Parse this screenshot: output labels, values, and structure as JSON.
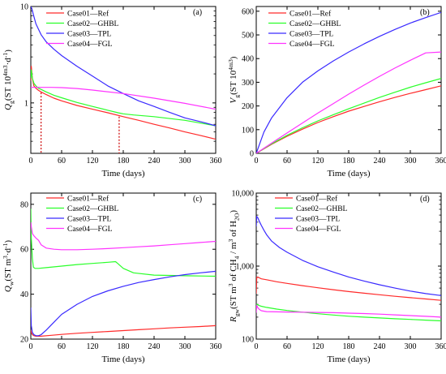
{
  "figure": {
    "background": "#ffffff"
  },
  "colors": {
    "Case01": "#ff2a2a",
    "Case02": "#2aff2a",
    "Case03": "#3a2aff",
    "Case04": "#ff33ff",
    "markers": "#cc0000"
  },
  "chart_data": [
    {
      "panel": "(a)",
      "type": "line",
      "ylabel": "Q_g(ST 10^4m^3·d^-1)",
      "xlabel": "Time (days)",
      "xlim": [
        0,
        360
      ],
      "ylim": [
        0.3,
        10
      ],
      "yscale": "log",
      "xticks": [
        0,
        60,
        120,
        180,
        240,
        300,
        360
      ],
      "yticks": [
        {
          "v": 1,
          "label": "1"
        },
        {
          "v": 10,
          "label": "10"
        }
      ],
      "legend_position": "top-left",
      "vertical_markers": [
        {
          "x": 20,
          "y": 1.28
        },
        {
          "x": 172,
          "y": 0.72
        }
      ],
      "series": [
        {
          "name": "Case01—Ref",
          "key": "Case01",
          "x": [
            0,
            1,
            3,
            6,
            10,
            15,
            20,
            30,
            45,
            60,
            90,
            120,
            150,
            180,
            210,
            240,
            270,
            300,
            330,
            360
          ],
          "y": [
            1.7,
            2.4,
            1.8,
            1.5,
            1.42,
            1.35,
            1.3,
            1.22,
            1.12,
            1.05,
            0.94,
            0.86,
            0.79,
            0.72,
            0.66,
            0.6,
            0.55,
            0.5,
            0.46,
            0.42
          ]
        },
        {
          "name": "Case02—GHBL",
          "key": "Case02",
          "x": [
            0,
            1,
            3,
            6,
            10,
            15,
            20,
            30,
            45,
            60,
            90,
            120,
            150,
            170,
            180,
            200,
            240,
            300,
            360
          ],
          "y": [
            1.8,
            2.2,
            1.8,
            1.6,
            1.5,
            1.42,
            1.38,
            1.3,
            1.2,
            1.13,
            1.01,
            0.92,
            0.84,
            0.79,
            0.77,
            0.75,
            0.72,
            0.66,
            0.58
          ]
        },
        {
          "name": "Case03—TPL",
          "key": "Case03",
          "x": [
            0,
            2,
            5,
            10,
            15,
            20,
            30,
            45,
            60,
            90,
            120,
            150,
            180,
            210,
            240,
            270,
            300,
            330,
            360
          ],
          "y": [
            10,
            9.5,
            8.2,
            6.6,
            5.8,
            5.1,
            4.3,
            3.6,
            3.1,
            2.4,
            1.9,
            1.5,
            1.25,
            1.05,
            0.92,
            0.8,
            0.7,
            0.64,
            0.58
          ]
        },
        {
          "name": "Case04—FGL",
          "key": "Case04",
          "x": [
            0,
            5,
            10,
            20,
            40,
            60,
            90,
            120,
            180,
            240,
            300,
            360
          ],
          "y": [
            1.45,
            1.45,
            1.45,
            1.45,
            1.45,
            1.44,
            1.41,
            1.36,
            1.25,
            1.12,
            0.99,
            0.86
          ]
        }
      ]
    },
    {
      "panel": "(b)",
      "type": "line",
      "ylabel": "V_g(ST 10^4m^3)",
      "xlabel": "Time (days)",
      "xlim": [
        0,
        360
      ],
      "ylim": [
        0,
        620
      ],
      "yscale": "linear",
      "xticks": [
        0,
        60,
        120,
        180,
        240,
        300,
        360
      ],
      "yticks": [
        {
          "v": 0,
          "label": "0"
        },
        {
          "v": 100,
          "label": "100"
        },
        {
          "v": 200,
          "label": "200"
        },
        {
          "v": 300,
          "label": "300"
        },
        {
          "v": 400,
          "label": "400"
        },
        {
          "v": 500,
          "label": "500"
        },
        {
          "v": 600,
          "label": "600"
        }
      ],
      "legend_position": "top-left",
      "series": [
        {
          "name": "Case01—Ref",
          "key": "Case01",
          "x": [
            0,
            30,
            60,
            90,
            120,
            150,
            180,
            210,
            240,
            270,
            300,
            330,
            360
          ],
          "y": [
            0,
            38,
            72,
            102,
            130,
            155,
            178,
            198,
            218,
            236,
            253,
            269,
            285
          ]
        },
        {
          "name": "Case02—GHBL",
          "key": "Case02",
          "x": [
            0,
            30,
            60,
            90,
            120,
            150,
            180,
            210,
            240,
            270,
            300,
            330,
            360
          ],
          "y": [
            0,
            40,
            76,
            108,
            137,
            163,
            188,
            212,
            236,
            258,
            279,
            298,
            316
          ]
        },
        {
          "name": "Case03—TPL",
          "key": "Case03",
          "x": [
            0,
            15,
            30,
            60,
            90,
            120,
            150,
            180,
            210,
            240,
            270,
            300,
            330,
            360
          ],
          "y": [
            0,
            90,
            150,
            235,
            300,
            348,
            390,
            428,
            462,
            494,
            523,
            550,
            573,
            595
          ]
        },
        {
          "name": "Case04—FGL",
          "key": "Case04",
          "x": [
            0,
            30,
            60,
            90,
            120,
            150,
            180,
            210,
            240,
            270,
            300,
            330,
            360
          ],
          "y": [
            0,
            43,
            86,
            128,
            170,
            210,
            250,
            288,
            325,
            360,
            393,
            424,
            428
          ]
        }
      ]
    },
    {
      "panel": "(c)",
      "type": "line",
      "ylabel": "Q_w(ST m^3·d^-1)",
      "xlabel": "Time (days)",
      "xlim": [
        0,
        360
      ],
      "ylim": [
        20,
        85
      ],
      "yscale": "linear",
      "xticks": [
        0,
        60,
        120,
        180,
        240,
        300,
        360
      ],
      "yticks": [
        {
          "v": 20,
          "label": "20"
        },
        {
          "v": 40,
          "label": "40"
        },
        {
          "v": 60,
          "label": "60"
        },
        {
          "v": 80,
          "label": "80"
        }
      ],
      "legend_position": "top-right",
      "series": [
        {
          "name": "Case01—Ref",
          "key": "Case01",
          "x": [
            0,
            1,
            3,
            6,
            10,
            20,
            40,
            60,
            90,
            120,
            150,
            180,
            210,
            240,
            270,
            300,
            330,
            360
          ],
          "y": [
            24,
            23,
            22,
            21.5,
            21.3,
            21.3,
            21.7,
            22.1,
            22.6,
            23.0,
            23.4,
            23.8,
            24.2,
            24.6,
            25.0,
            25.3,
            25.6,
            26.0
          ]
        },
        {
          "name": "Case02—GHBL",
          "key": "Case02",
          "x": [
            0,
            1,
            3,
            5,
            8,
            15,
            30,
            60,
            90,
            120,
            150,
            165,
            170,
            180,
            200,
            240,
            300,
            360
          ],
          "y": [
            78,
            65,
            56,
            52,
            51.5,
            51.5,
            51.8,
            52.5,
            53.2,
            53.7,
            54.2,
            54.5,
            53.5,
            51.5,
            49.5,
            48.5,
            48.2,
            48.0
          ]
        },
        {
          "name": "Case03—TPL",
          "key": "Case03",
          "x": [
            0,
            1,
            3,
            6,
            10,
            15,
            20,
            30,
            45,
            60,
            90,
            120,
            150,
            180,
            210,
            240,
            270,
            300,
            330,
            360
          ],
          "y": [
            34,
            26,
            23,
            22,
            21.5,
            21.5,
            22,
            24,
            27.5,
            31,
            35.5,
            39,
            41.5,
            43.5,
            45.2,
            46.5,
            47.7,
            48.7,
            49.5,
            50.2
          ]
        },
        {
          "name": "Case04—FGL",
          "key": "Case04",
          "x": [
            0,
            1,
            3,
            6,
            10,
            15,
            20,
            30,
            45,
            60,
            90,
            120,
            150,
            180,
            210,
            240,
            270,
            300,
            330,
            360
          ],
          "y": [
            72,
            70,
            67,
            66,
            65,
            64,
            62,
            60.5,
            60,
            59.8,
            59.8,
            60,
            60.3,
            60.7,
            61.1,
            61.5,
            62,
            62.5,
            63,
            63.5
          ]
        }
      ]
    },
    {
      "panel": "(d)",
      "type": "line",
      "ylabel": "R_gw(ST m^3 of CH_4 / m^3 of H_2O)",
      "xlabel": "Time (days)",
      "xlim": [
        0,
        360
      ],
      "ylim": [
        100,
        10000
      ],
      "yscale": "log",
      "xticks": [
        0,
        60,
        120,
        180,
        240,
        300,
        360
      ],
      "yticks": [
        {
          "v": 100,
          "label": "100"
        },
        {
          "v": 1000,
          "label": "1,000"
        },
        {
          "v": 10000,
          "label": "10,000"
        }
      ],
      "legend_position": "top-right",
      "series": [
        {
          "name": "Case01—Ref",
          "key": "Case01",
          "x": [
            0,
            1,
            3,
            6,
            10,
            20,
            40,
            60,
            90,
            120,
            150,
            180,
            210,
            240,
            270,
            300,
            330,
            360
          ],
          "y": [
            420,
            700,
            710,
            690,
            670,
            650,
            610,
            580,
            540,
            505,
            475,
            448,
            425,
            405,
            386,
            370,
            355,
            340
          ]
        },
        {
          "name": "Case02—GHBL",
          "key": "Case02",
          "x": [
            0,
            1,
            3,
            6,
            10,
            20,
            40,
            60,
            90,
            120,
            150,
            180,
            210,
            240,
            270,
            300,
            330,
            360
          ],
          "y": [
            260,
            300,
            295,
            288,
            282,
            272,
            258,
            247,
            234,
            223,
            214,
            206,
            200,
            195,
            190,
            186,
            182,
            178
          ]
        },
        {
          "name": "Case03—TPL",
          "key": "Case03",
          "x": [
            0,
            1,
            3,
            6,
            10,
            15,
            20,
            30,
            45,
            60,
            90,
            120,
            150,
            180,
            210,
            240,
            270,
            300,
            330,
            360
          ],
          "y": [
            3500,
            4800,
            4600,
            4100,
            3600,
            3100,
            2700,
            2200,
            1800,
            1550,
            1200,
            980,
            830,
            710,
            625,
            555,
            500,
            455,
            420,
            395
          ]
        },
        {
          "name": "Case04—FGL",
          "key": "Case04",
          "x": [
            0,
            1,
            3,
            6,
            10,
            20,
            40,
            60,
            90,
            120,
            150,
            180,
            210,
            240,
            270,
            300,
            330,
            360
          ],
          "y": [
            230,
            290,
            270,
            255,
            245,
            238,
            236,
            235,
            234,
            232,
            230,
            227,
            224,
            220,
            215,
            210,
            205,
            200
          ]
        }
      ]
    }
  ]
}
